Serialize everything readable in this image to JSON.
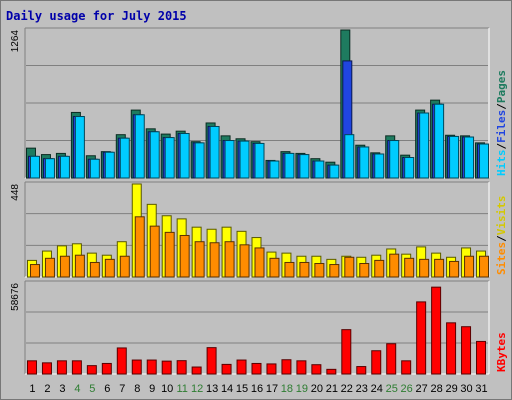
{
  "chart_data": {
    "type": "bar",
    "title": "Daily usage for July 2015",
    "categories": [
      "1",
      "2",
      "3",
      "4",
      "5",
      "6",
      "7",
      "8",
      "9",
      "10",
      "11",
      "12",
      "13",
      "14",
      "15",
      "16",
      "17",
      "18",
      "19",
      "20",
      "21",
      "22",
      "23",
      "24",
      "25",
      "26",
      "27",
      "28",
      "29",
      "30",
      "31"
    ],
    "weekend_days": [
      "4",
      "5",
      "11",
      "12",
      "18",
      "19",
      "25",
      "26"
    ],
    "panels": [
      {
        "ymax_label": "1264",
        "ylim": [
          0,
          1264
        ],
        "series": [
          {
            "name": "Pages",
            "color": "#1e7b5f",
            "values": [
              255,
              200,
              210,
              560,
              190,
              225,
              370,
              580,
              420,
              375,
              400,
              310,
              470,
              360,
              335,
              310,
              150,
              225,
              210,
              165,
              135,
              1264,
              280,
              215,
              360,
              195,
              580,
              665,
              365,
              360,
              300
            ]
          },
          {
            "name": "Files",
            "color": "#2045e0",
            "values": [
              185,
              165,
              185,
              525,
              160,
              220,
              340,
              540,
              395,
              345,
              380,
              300,
              440,
              320,
              315,
              295,
              145,
              210,
              200,
              145,
              110,
              1000,
              265,
              205,
              320,
              175,
              555,
              630,
              355,
              350,
              290
            ]
          },
          {
            "name": "Hits",
            "color": "#00ccff",
            "values": [
              185,
              165,
              185,
              525,
              160,
              220,
              340,
              540,
              395,
              345,
              380,
              300,
              440,
              320,
              315,
              295,
              145,
              210,
              200,
              145,
              110,
              370,
              265,
              205,
              320,
              175,
              555,
              630,
              355,
              350,
              290
            ]
          }
        ]
      },
      {
        "ymax_label": "448",
        "ylim": [
          0,
          448
        ],
        "series": [
          {
            "name": "Visits",
            "color": "#ffff00",
            "values": [
              80,
              125,
              150,
              160,
              115,
              105,
              170,
              448,
              350,
              295,
              280,
              240,
              230,
              240,
              220,
              190,
              120,
              115,
              100,
              100,
              85,
              100,
              95,
              105,
              135,
              110,
              145,
              115,
              95,
              140,
              125
            ]
          },
          {
            "name": "Sites",
            "color": "#ff8c00",
            "values": [
              60,
              90,
              100,
              105,
              70,
              85,
              100,
              290,
              245,
              215,
              200,
              170,
              165,
              170,
              155,
              140,
              90,
              70,
              70,
              65,
              60,
              95,
              65,
              80,
              110,
              90,
              85,
              85,
              75,
              100,
              100
            ]
          }
        ]
      },
      {
        "ymax_label": "58676",
        "ylim": [
          0,
          58676
        ],
        "series": [
          {
            "name": "KBytes",
            "color": "#ff0000",
            "values": [
              8500,
              7200,
              8500,
              8500,
              5400,
              6800,
              16800,
              9000,
              9000,
              8300,
              8600,
              4500,
              17000,
              6200,
              9000,
              6800,
              6500,
              9200,
              8500,
              6000,
              3000,
              28600,
              4800,
              15000,
              19500,
              8500,
              46500,
              56000,
              33000,
              30500,
              21000
            ]
          }
        ]
      }
    ]
  }
}
